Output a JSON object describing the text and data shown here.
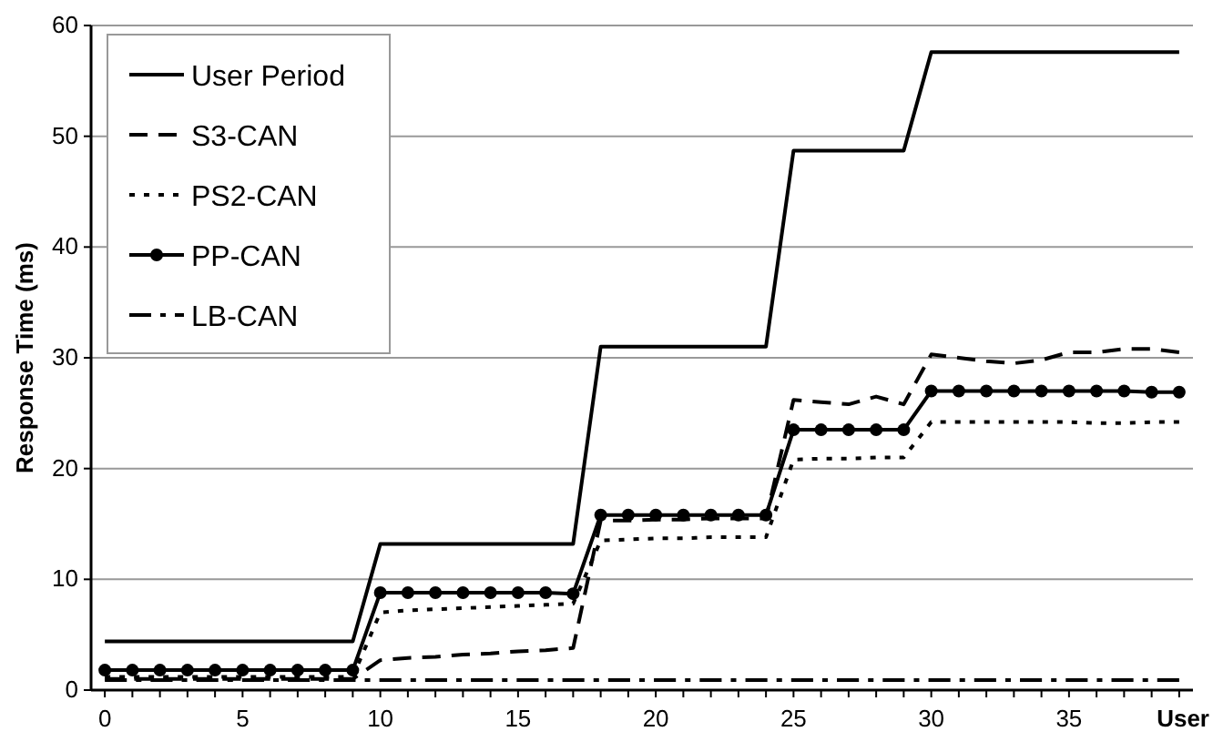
{
  "chart_data": {
    "type": "line",
    "xlabel": "User",
    "ylabel": "Response Time (ms)",
    "x": [
      0,
      1,
      2,
      3,
      4,
      5,
      6,
      7,
      8,
      9,
      10,
      11,
      12,
      13,
      14,
      15,
      16,
      17,
      18,
      19,
      20,
      21,
      22,
      23,
      24,
      25,
      26,
      27,
      28,
      29,
      30,
      31,
      32,
      33,
      34,
      35,
      36,
      37,
      38,
      39
    ],
    "xlim": [
      -0.5,
      39.5
    ],
    "xticks": [
      0,
      5,
      10,
      15,
      20,
      25,
      30,
      35
    ],
    "ylim": [
      0,
      60
    ],
    "yticks": [
      0,
      10,
      20,
      30,
      40,
      50,
      60
    ],
    "grid": "y",
    "legend": "top left",
    "series": [
      {
        "name": "User Period",
        "color": "#000000",
        "line_style": "solid",
        "marker": "none",
        "values": [
          4.4,
          4.4,
          4.4,
          4.4,
          4.4,
          4.4,
          4.4,
          4.4,
          4.4,
          4.4,
          13.2,
          13.2,
          13.2,
          13.2,
          13.2,
          13.2,
          13.2,
          13.2,
          31,
          31,
          31,
          31,
          31,
          31,
          31,
          48.7,
          48.7,
          48.7,
          48.7,
          48.7,
          57.6,
          57.6,
          57.6,
          57.6,
          57.6,
          57.6,
          57.6,
          57.6,
          57.6,
          57.6
        ]
      },
      {
        "name": "S3-CAN",
        "color": "#000000",
        "line_style": "dashed",
        "marker": "none",
        "values": [
          1,
          1,
          1,
          1,
          1,
          1,
          1,
          1,
          1,
          1,
          2.7,
          2.9,
          3,
          3.2,
          3.3,
          3.5,
          3.6,
          3.8,
          15.3,
          15.3,
          15.4,
          15.4,
          15.5,
          15.5,
          15.5,
          26.2,
          26,
          25.8,
          26.5,
          25.8,
          30.3,
          30,
          29.7,
          29.5,
          29.8,
          30.5,
          30.5,
          30.8,
          30.8,
          30.5
        ]
      },
      {
        "name": "PS2-CAN",
        "color": "#000000",
        "line_style": "dotted",
        "marker": "none",
        "values": [
          1.2,
          1.2,
          1.2,
          1.2,
          1.2,
          1.2,
          1.2,
          1.2,
          1.2,
          1.2,
          7,
          7.2,
          7.3,
          7.4,
          7.5,
          7.6,
          7.7,
          7.8,
          13.5,
          13.6,
          13.7,
          13.7,
          13.8,
          13.8,
          13.8,
          20.8,
          20.9,
          20.9,
          21,
          21,
          24.2,
          24.2,
          24.2,
          24.2,
          24.2,
          24.2,
          24.1,
          24.1,
          24.2,
          24.2
        ]
      },
      {
        "name": "PP-CAN",
        "color": "#000000",
        "line_style": "solid",
        "marker": "circle",
        "values": [
          1.8,
          1.8,
          1.8,
          1.8,
          1.8,
          1.8,
          1.8,
          1.8,
          1.8,
          1.8,
          8.8,
          8.8,
          8.8,
          8.8,
          8.8,
          8.8,
          8.8,
          8.7,
          15.8,
          15.8,
          15.8,
          15.8,
          15.8,
          15.8,
          15.8,
          23.5,
          23.5,
          23.5,
          23.5,
          23.5,
          27,
          27,
          27,
          27,
          27,
          27,
          27,
          27,
          26.9,
          26.9
        ]
      },
      {
        "name": "LB-CAN",
        "color": "#000000",
        "line_style": "dashdot",
        "marker": "none",
        "values": [
          0.9,
          0.9,
          0.9,
          0.9,
          0.9,
          0.9,
          0.9,
          0.9,
          0.9,
          0.9,
          0.9,
          0.9,
          0.9,
          0.9,
          0.9,
          0.9,
          0.9,
          0.9,
          0.9,
          0.9,
          0.9,
          0.9,
          0.9,
          0.9,
          0.9,
          0.9,
          0.9,
          0.9,
          0.9,
          0.9,
          0.9,
          0.9,
          0.9,
          0.9,
          0.9,
          0.9,
          0.9,
          0.9,
          0.9,
          0.9
        ]
      }
    ]
  }
}
